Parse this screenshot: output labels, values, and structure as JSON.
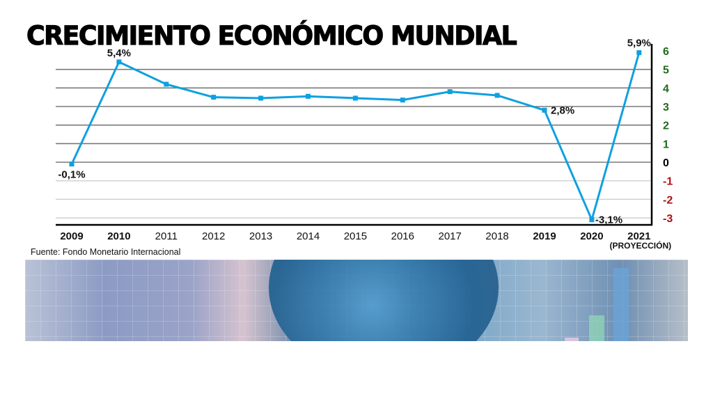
{
  "chart_data": {
    "type": "line",
    "title": "CRECIMIENTO ECONÓMICO MUNDIAL",
    "source": "Fuente: Fondo Monetario Internacional",
    "categories": [
      "2009",
      "2010",
      "2011",
      "2012",
      "2013",
      "2014",
      "2015",
      "2016",
      "2017",
      "2018",
      "2019",
      "2020",
      "2021"
    ],
    "category_bold": [
      true,
      true,
      false,
      false,
      false,
      false,
      false,
      false,
      false,
      false,
      true,
      true,
      true
    ],
    "category_note": {
      "2021": "(PROYECCIÓN)"
    },
    "values": [
      -0.1,
      5.4,
      4.2,
      3.5,
      3.45,
      3.55,
      3.45,
      3.35,
      3.8,
      3.6,
      2.8,
      -3.1,
      5.9
    ],
    "data_labels": {
      "2009": "-0,1%",
      "2010": "5,4%",
      "2019": "2,8%",
      "2020": "-3,1%",
      "2021": "5,9%"
    },
    "ylim": [
      -3,
      6
    ],
    "yticks": [
      6,
      5,
      4,
      3,
      2,
      1,
      0,
      -1,
      -2,
      -3
    ],
    "yaxis_position": "right",
    "grid": true,
    "line_color": "#0ea0e0",
    "tick_colors": {
      "positive": "#1e6b1e",
      "zero": "#000000",
      "negative": "#b01010"
    },
    "xlabel": "",
    "ylabel": ""
  }
}
